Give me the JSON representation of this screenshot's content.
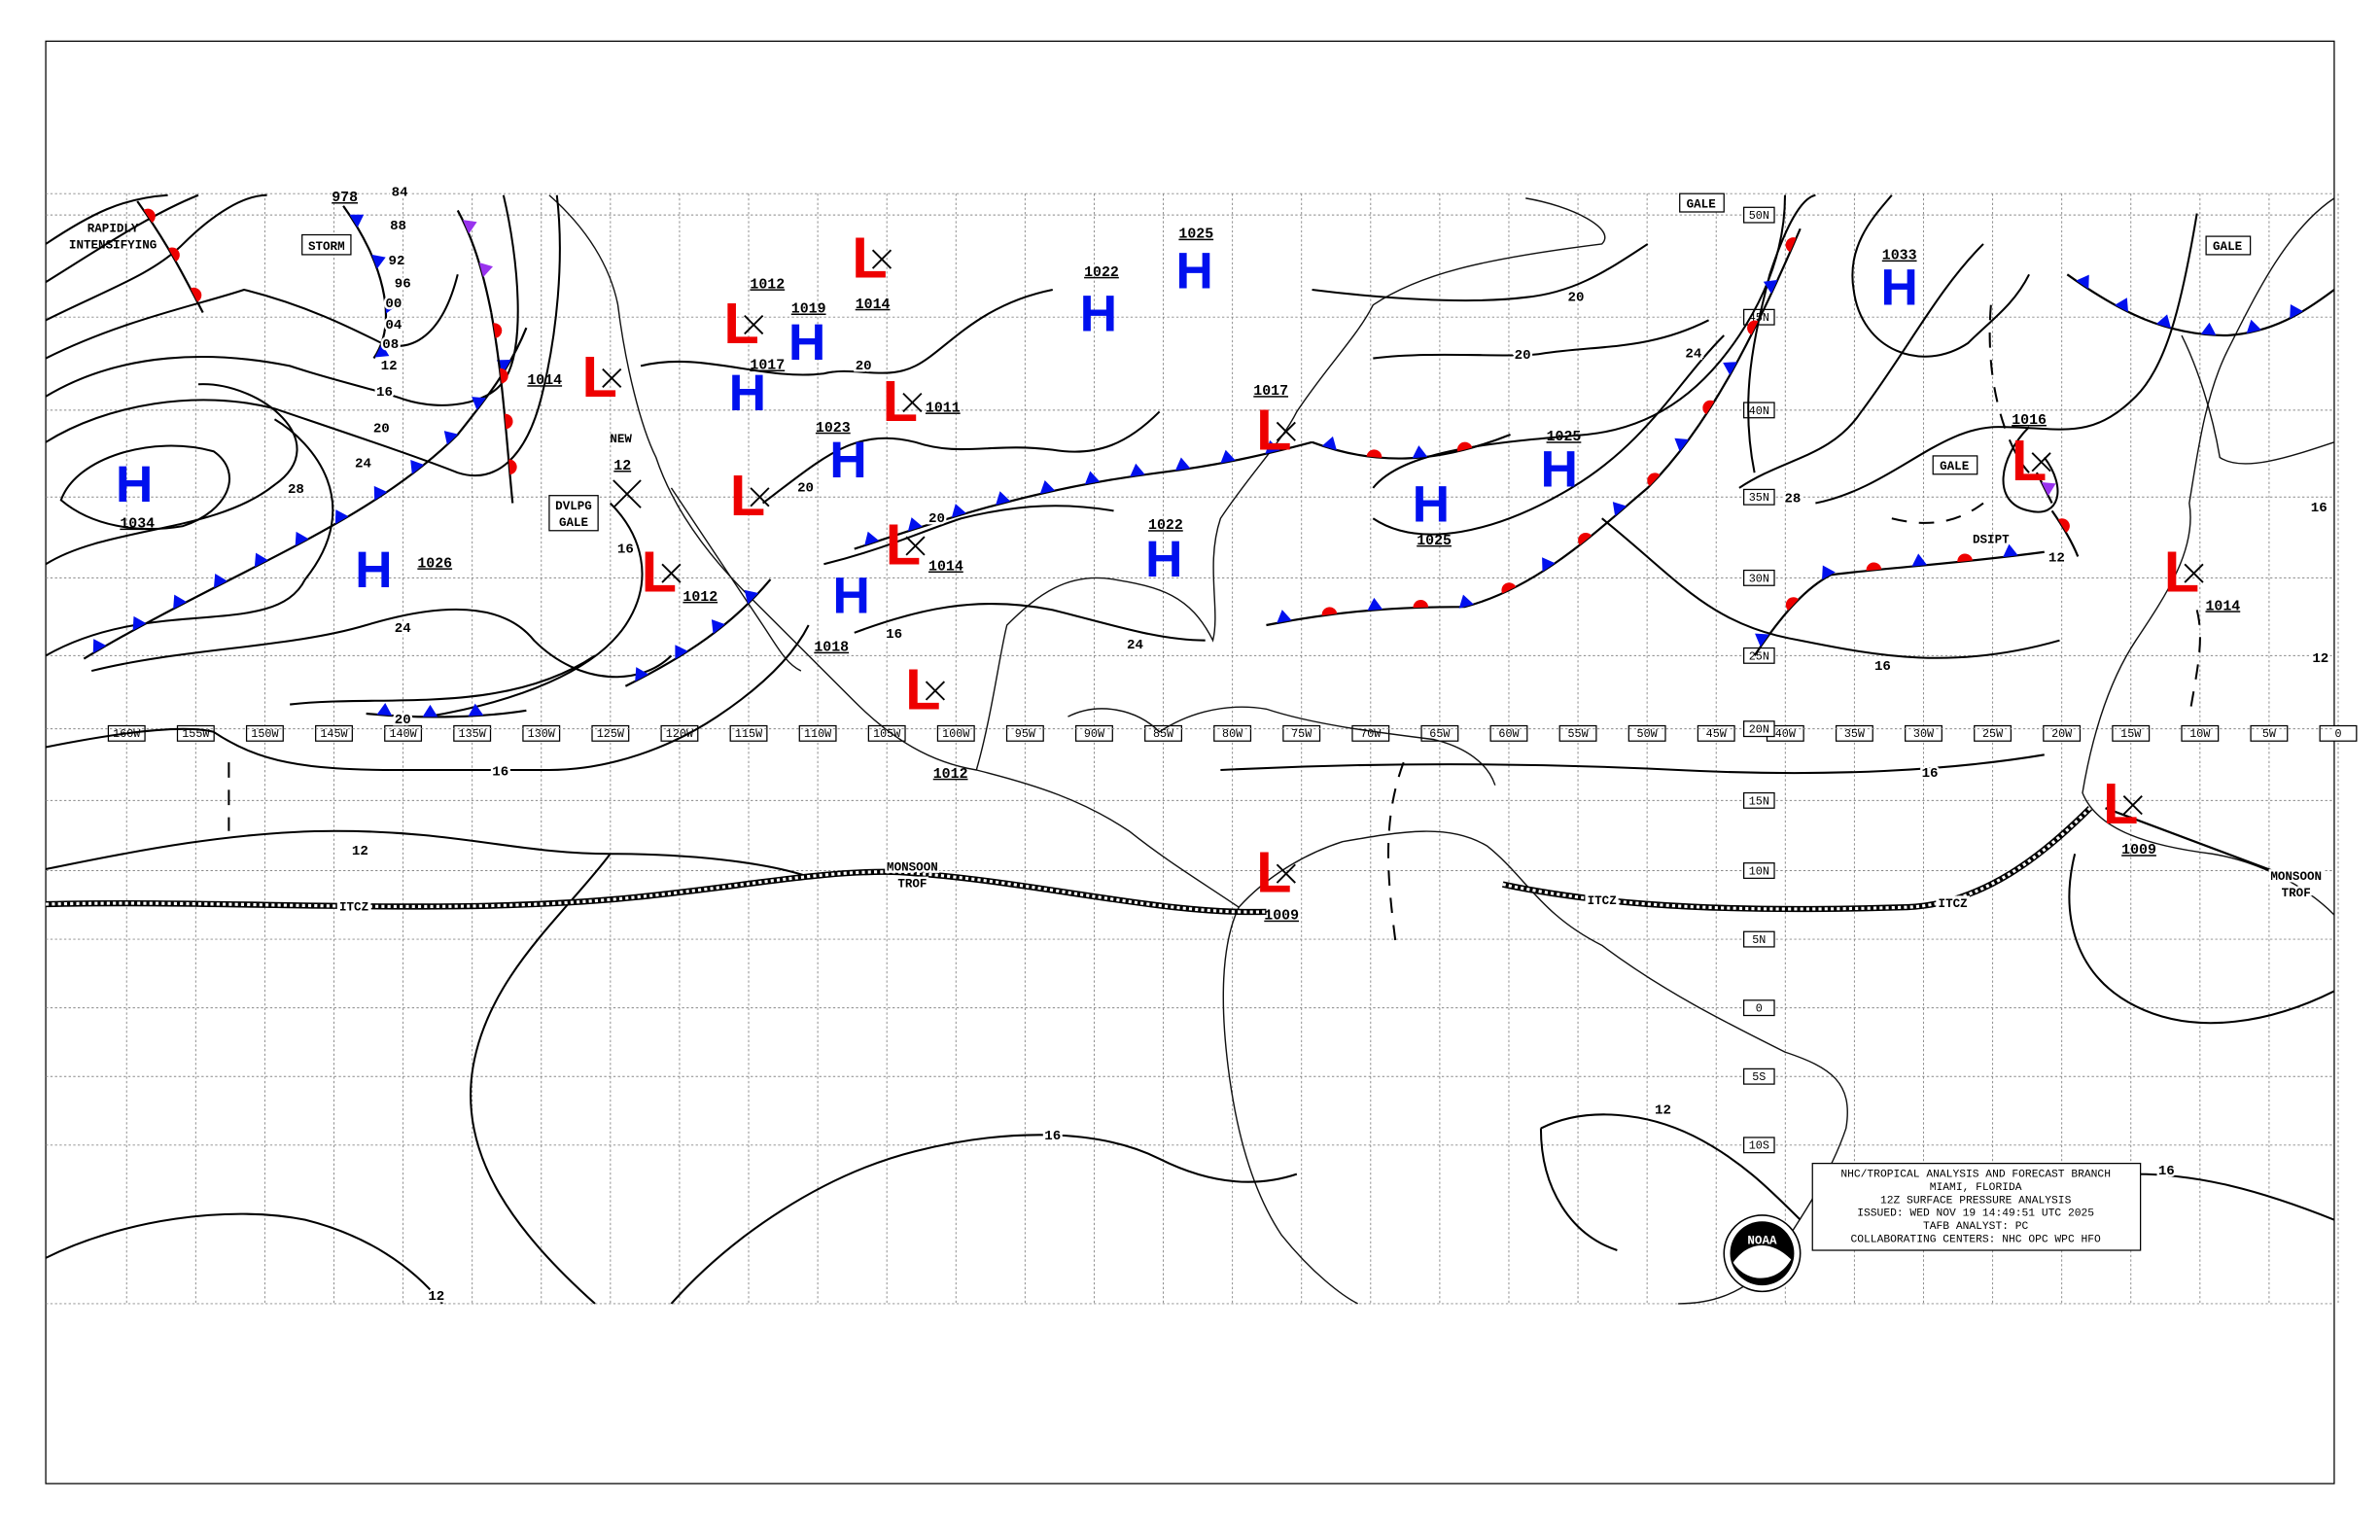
{
  "map": {
    "type": "surface pressure analysis",
    "colors": {
      "high": "#0010ee",
      "low": "#ee0000",
      "cold_front": "#0010ee",
      "warm_front": "#ee0000",
      "occluded_front": "#9933ee",
      "isobar": "#000000"
    },
    "longitude_labels": [
      "160W",
      "155W",
      "150W",
      "145W",
      "140W",
      "135W",
      "130W",
      "125W",
      "120W",
      "115W",
      "110W",
      "105W",
      "100W",
      "95W",
      "90W",
      "85W",
      "80W",
      "75W",
      "70W",
      "65W",
      "60W",
      "55W",
      "50W",
      "45W",
      "40W",
      "35W",
      "30W",
      "25W",
      "20W",
      "15W",
      "10W",
      "5W",
      "0"
    ],
    "latitude_labels": [
      "50N",
      "45N",
      "40N",
      "35N",
      "30N",
      "25N",
      "20N",
      "15N",
      "10N",
      "5N",
      "0",
      "5S",
      "10S"
    ],
    "pressure_centers": [
      {
        "type": "H",
        "value": "1034"
      },
      {
        "type": "H",
        "value": "1026"
      },
      {
        "type": "L",
        "value": "1014"
      },
      {
        "type": "L",
        "value": "1012"
      },
      {
        "type": "L",
        "value": ""
      },
      {
        "type": "L",
        "value": "1012"
      },
      {
        "type": "H",
        "value": "1019"
      },
      {
        "type": "H",
        "value": "1017"
      },
      {
        "type": "L",
        "value": "1014"
      },
      {
        "type": "H",
        "value": "1023"
      },
      {
        "type": "L",
        "value": "1011"
      },
      {
        "type": "L",
        "value": "1014"
      },
      {
        "type": "H",
        "value": "1018"
      },
      {
        "type": "L",
        "value": "1012"
      },
      {
        "type": "H",
        "value": "1022"
      },
      {
        "type": "H",
        "value": "1025"
      },
      {
        "type": "H",
        "value": "1022"
      },
      {
        "type": "L",
        "value": "1017"
      },
      {
        "type": "H",
        "value": "1025"
      },
      {
        "type": "H",
        "value": "1025"
      },
      {
        "type": "H",
        "value": "1033"
      },
      {
        "type": "L",
        "value": "1016"
      },
      {
        "type": "L",
        "value": "1014"
      },
      {
        "type": "L",
        "value": "1009"
      },
      {
        "type": "L",
        "value": "1009"
      }
    ],
    "isobar_labels": [
      "84",
      "88",
      "92",
      "96",
      "00",
      "04",
      "08",
      "12",
      "16",
      "20",
      "24",
      "28",
      "20",
      "24",
      "16",
      "12",
      "16",
      "12",
      "16",
      "20",
      "20",
      "16",
      "20",
      "24",
      "28",
      "24",
      "20",
      "20",
      "16",
      "12",
      "16",
      "12",
      "16",
      "12",
      "16"
    ],
    "annotations": {
      "rapidly_line1": "RAPIDLY",
      "rapidly_line2": "INTENSIFYING",
      "storm": "STORM",
      "storm_value": "978",
      "dvlpg_line1": "DVLPG",
      "dvlpg_line2": "GALE",
      "gale_1": "GALE",
      "gale_2": "GALE",
      "gale_3": "GALE",
      "dsipt": "DSIPT",
      "new_label": "NEW",
      "new_value": "12",
      "itcz_1": "ITCZ",
      "itcz_2": "ITCZ",
      "itcz_3": "ITCZ",
      "monsoon_1_line1": "MONSOON",
      "monsoon_1_line2": "TROF",
      "monsoon_2_line1": "MONSOON",
      "monsoon_2_line2": "TROF"
    }
  },
  "info_box": {
    "line1": "NHC/TROPICAL ANALYSIS AND FORECAST BRANCH",
    "line2": "MIAMI, FLORIDA",
    "line3": "12Z SURFACE PRESSURE ANALYSIS",
    "line4": "ISSUED: WED NOV 19 14:49:51 UTC 2025",
    "line5": "TAFB ANALYST: PC",
    "line6": "COLLABORATING CENTERS: NHC OPC WPC HFO"
  },
  "logo": {
    "text": "NOAA"
  }
}
